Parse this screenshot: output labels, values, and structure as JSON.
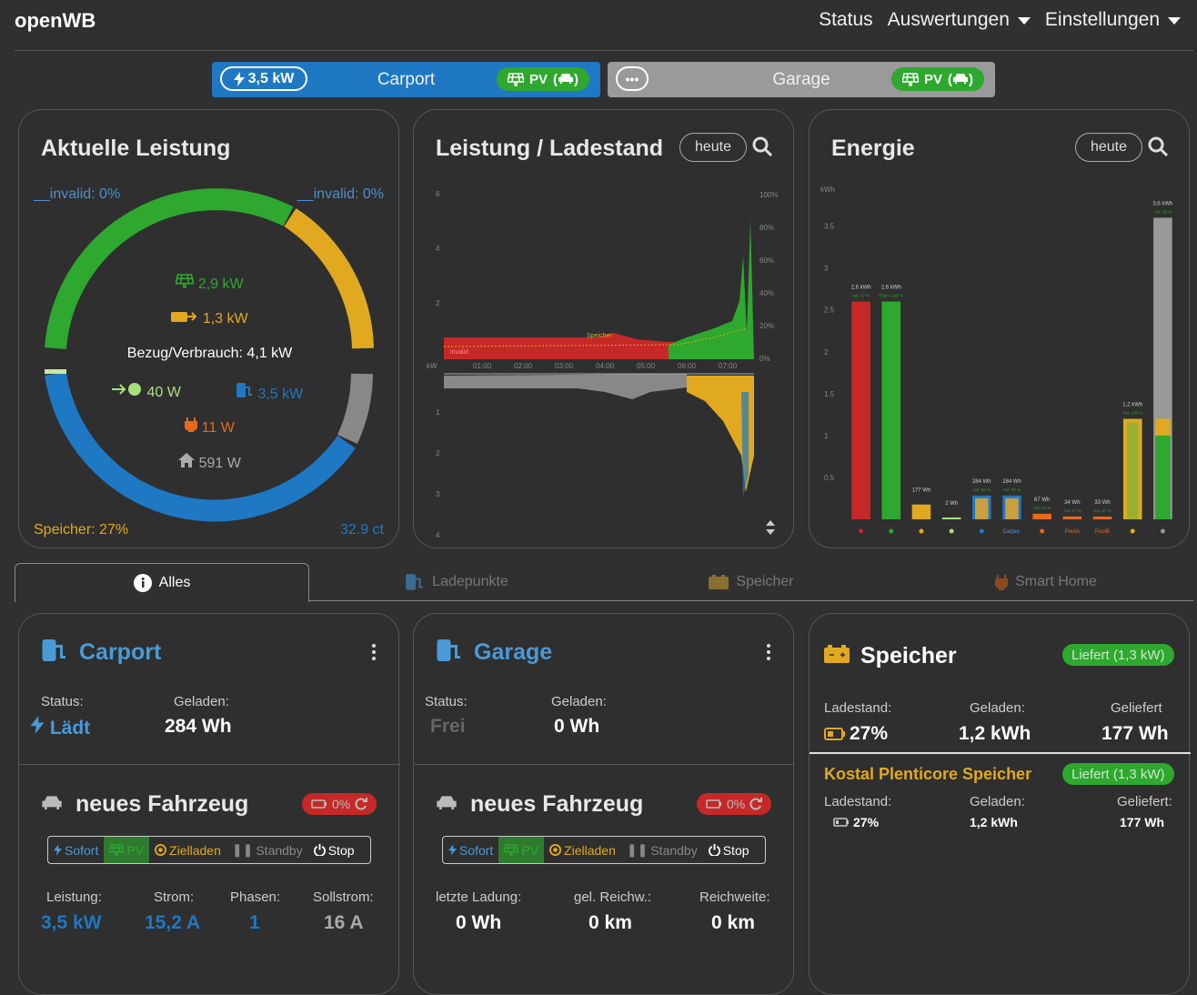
{
  "app": {
    "brand": "openWB",
    "nav": [
      "Status",
      "Auswertungen",
      "Einstellungen"
    ]
  },
  "chargepoints_bar": [
    {
      "power": "3,5 kW",
      "name": "Carport",
      "mode": "PV",
      "color": "#1e78c4"
    },
    {
      "power": "",
      "name": "Garage",
      "mode": "PV",
      "color": "#9a9a9a"
    }
  ],
  "power_card": {
    "title": "Aktuelle Leistung",
    "invalid_left": "__invalid: 0%",
    "invalid_right": "__invalid: 0%",
    "pv": "2,9 kW",
    "battery": "1,3 kW",
    "total": "Bezug/Verbrauch: 4,1 kW",
    "grid": "40 W",
    "charge": "3,5 kW",
    "smarthome": "11 W",
    "house": "591 W",
    "soc": "Speicher: 27%",
    "price": "32.9 ct",
    "colors": {
      "pv": "#2ea82e",
      "battery": "#e0a920",
      "charge": "#1e78c4",
      "house": "#888888",
      "grid": "#a8e080",
      "smarthome": "#e8681a"
    }
  },
  "history_card": {
    "title": "Leistung / Ladestand",
    "button": "heute",
    "left_axis_top": [
      "6",
      "4",
      "2"
    ],
    "left_axis_bottom": [
      "1",
      "2",
      "3",
      "4"
    ],
    "unit": "kW",
    "right_axis": [
      "100%",
      "80%",
      "60%",
      "40%",
      "20%",
      "0%"
    ],
    "times": [
      "01:00",
      "02:00",
      "03:00",
      "04:00",
      "05:00",
      "06:00",
      "07:00"
    ],
    "labels": {
      "speicher": "Speicher",
      "invalid": "invalid"
    }
  },
  "energy_card": {
    "title": "Energie",
    "button": "heute",
    "unit": "kWh",
    "chart_data": {
      "type": "bar",
      "ylabel": "kWh",
      "ylim": [
        0,
        3.8
      ],
      "yticks": [
        "3.5",
        "3",
        "2.5",
        "2",
        "1.5",
        "1",
        "0.5"
      ],
      "bars": [
        {
          "key": "Bezug",
          "value": 2.6,
          "label": "2,6 kWh",
          "sub": "Aut: 37 %",
          "color": "#c62828"
        },
        {
          "key": "PV",
          "value": 2.6,
          "label": "2,6 kWh",
          "sub": "Eigen: 100 %",
          "color": "#2ea82e"
        },
        {
          "key": "Speicher rein",
          "value": 0.177,
          "label": "177 Wh",
          "sub": "",
          "color": "#e0a920"
        },
        {
          "key": "Export",
          "value": 0.002,
          "label": "2 Wh",
          "sub": "",
          "color": "#a8e080"
        },
        {
          "key": "Ladepunkte",
          "value": 0.284,
          "label": "284 Wh",
          "sub": "Aut: 96 %",
          "color": "#1e78c4"
        },
        {
          "key": "Carport",
          "value": 0.284,
          "label": "284 Wh",
          "sub": "Aut: 97 %",
          "color": "#1e78c4"
        },
        {
          "key": "Smart Home",
          "value": 0.067,
          "label": "67 Wh",
          "sub": "Aut: 27 %",
          "color": "#e8681a"
        },
        {
          "key": "PoolA",
          "value": 0.034,
          "label": "34 Wh",
          "sub": "Aut: 27 %",
          "color": "#e8681a"
        },
        {
          "key": "PoolB",
          "value": 0.033,
          "label": "33 Wh",
          "sub": "Aut: 27 %",
          "color": "#e8681a"
        },
        {
          "key": "Speicher raus",
          "value": 1.2,
          "label": "1,2 kWh",
          "sub": "Aut: 100 %",
          "color": "#e0a920"
        },
        {
          "key": "Haus",
          "value": 3.6,
          "label": "3,6 kWh",
          "sub": "Aut: 35 %",
          "color": "#999999"
        }
      ],
      "xlabels": [
        "",
        "",
        "",
        "",
        "",
        "Carpor.",
        "",
        "PoolA",
        "PoolB",
        "",
        ""
      ]
    }
  },
  "tabs": [
    "Alles",
    "Ladepunkte",
    "Speicher",
    "Smart Home"
  ],
  "cp1": {
    "name": "Carport",
    "status_label": "Status:",
    "status": "Lädt",
    "charged_label": "Geladen:",
    "charged": "284 Wh",
    "vehicle": "neues Fahrzeug",
    "soc": "0%",
    "modes": [
      "Sofort",
      "PV",
      "Zielladen",
      "Standby",
      "Stop"
    ],
    "l1": "Leistung:",
    "v1": "3,5 kW",
    "l2": "Strom:",
    "v2": "15,2 A",
    "l3": "Phasen:",
    "v3": "1",
    "l4": "Sollstrom:",
    "v4": "16 A"
  },
  "cp2": {
    "name": "Garage",
    "status_label": "Status:",
    "status": "Frei",
    "charged_label": "Geladen:",
    "charged": "0 Wh",
    "vehicle": "neues Fahrzeug",
    "soc": "0%",
    "modes": [
      "Sofort",
      "PV",
      "Zielladen",
      "Standby",
      "Stop"
    ],
    "l1": "letzte Ladung:",
    "v1": "0 Wh",
    "l2": "gel. Reichw.:",
    "v2": "0 km",
    "l3": "Reichweite:",
    "v3": "0 km"
  },
  "battery": {
    "title": "Speicher",
    "badge": "Liefert (1,3 kW)",
    "l1": "Ladestand:",
    "v1": "27%",
    "l2": "Geladen:",
    "v2": "1,2 kWh",
    "l3": "Geliefert",
    "v3": "177 Wh",
    "sub_title": "Kostal Plenticore Speicher",
    "sub_badge": "Liefert (1,3 kW)",
    "s_l1": "Ladestand:",
    "s_v1": "27%",
    "s_l2": "Geladen:",
    "s_v2": "1,2 kWh",
    "s_l3": "Geliefert:",
    "s_v3": "177 Wh"
  }
}
